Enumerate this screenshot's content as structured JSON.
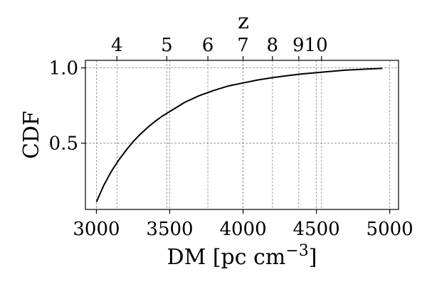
{
  "chart_data": {
    "type": "line",
    "xlabel": "DM [pc cm",
    "xlabel_sup": "−3",
    "xlabel_close": "]",
    "ylabel": "CDF",
    "top_axis_label": "z",
    "xlim": [
      2925,
      5060
    ],
    "ylim": [
      0.06,
      1.05
    ],
    "grid": true,
    "x_ticks": [
      3000,
      3500,
      4000,
      4500,
      5000
    ],
    "x_tick_labels": [
      "3000",
      "3500",
      "4000",
      "4500",
      "5000"
    ],
    "y_ticks": [
      0.5,
      1.0
    ],
    "y_tick_labels": [
      "0.5",
      "1.0"
    ],
    "top_ticks": [
      {
        "label": "4",
        "dm": 3140
      },
      {
        "label": "5",
        "dm": 3480
      },
      {
        "label": "6",
        "dm": 3760
      },
      {
        "label": "7",
        "dm": 4000
      },
      {
        "label": "8",
        "dm": 4200
      },
      {
        "label": "9",
        "dm": 4380
      },
      {
        "label": "10",
        "dm": 4535
      }
    ],
    "top_tick_text": [
      "4",
      "5",
      "6",
      "7",
      "8",
      "910"
    ],
    "series": [
      {
        "color": "#000000",
        "x": [
          3000,
          3050,
          3100,
          3150,
          3200,
          3250,
          3300,
          3350,
          3400,
          3450,
          3500,
          3600,
          3700,
          3800,
          3900,
          4000,
          4100,
          4200,
          4300,
          4400,
          4500,
          4600,
          4700,
          4800,
          4900,
          4950
        ],
        "y": [
          0.11,
          0.22,
          0.31,
          0.385,
          0.45,
          0.51,
          0.56,
          0.605,
          0.645,
          0.68,
          0.71,
          0.77,
          0.815,
          0.85,
          0.88,
          0.9,
          0.92,
          0.935,
          0.948,
          0.96,
          0.968,
          0.977,
          0.985,
          0.99,
          0.995,
          0.997
        ]
      }
    ]
  }
}
